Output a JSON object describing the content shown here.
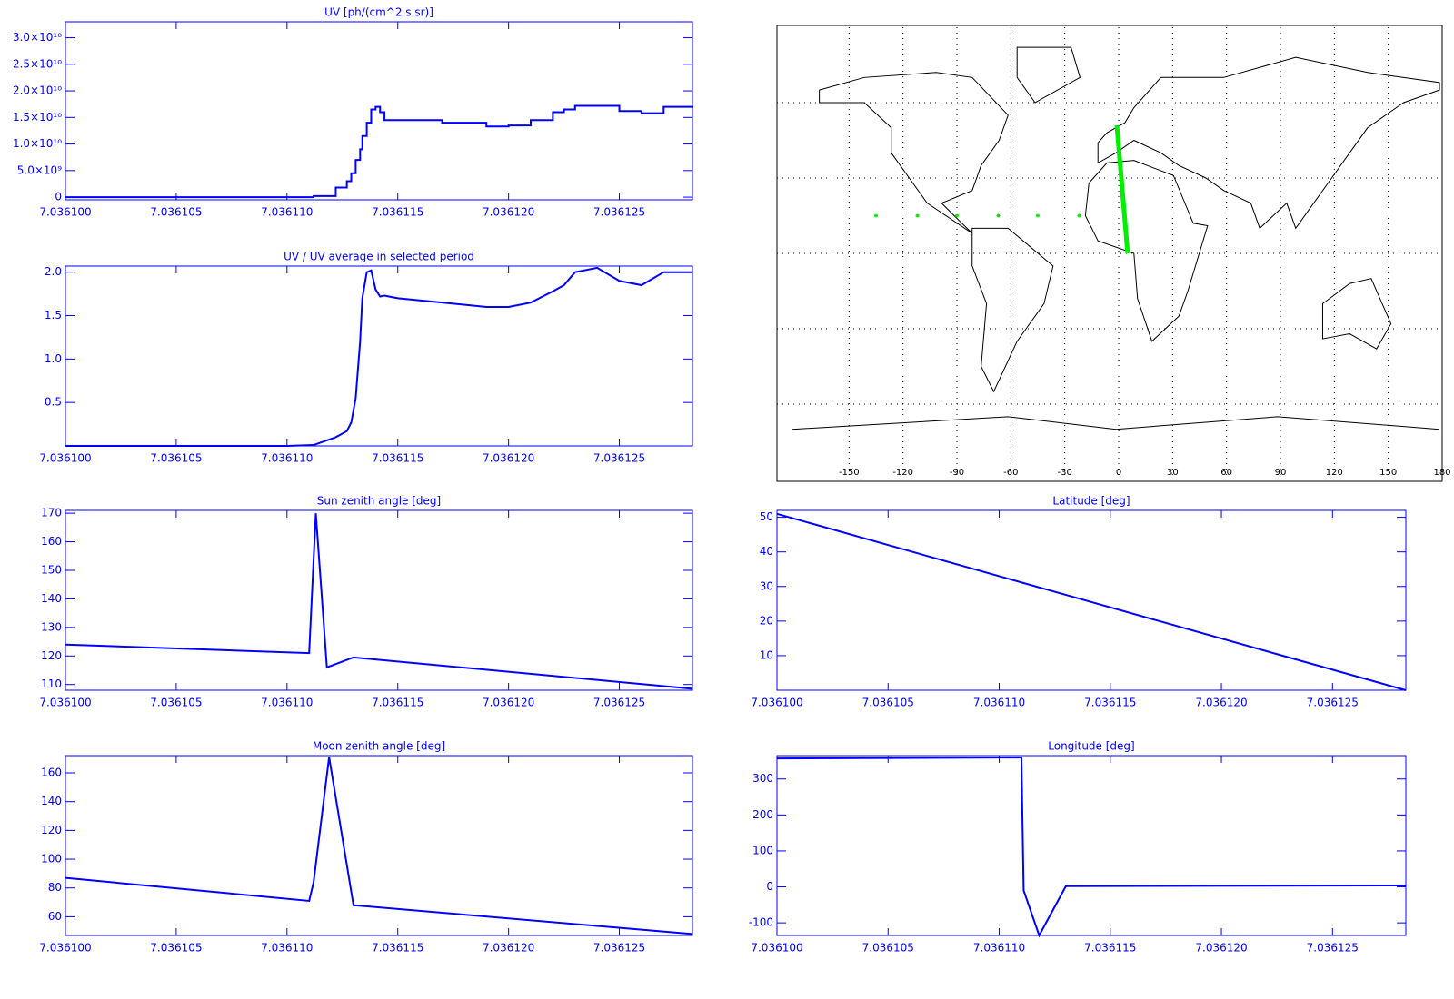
{
  "chart_data": [
    {
      "type": "line",
      "title": "UV [ph/(cm^2 s sr)]",
      "step": true,
      "x": [
        7.0361,
        7.03611,
        7.0361112,
        7.0361122,
        7.0361127,
        7.0361129,
        7.0361131,
        7.0361133,
        7.0361134,
        7.0361136,
        7.0361138,
        7.036114,
        7.0361142,
        7.0361144,
        7.0361146,
        7.036115,
        7.036117,
        7.036119,
        7.03612,
        7.036121,
        7.036122,
        7.0361225,
        7.036123,
        7.036124,
        7.036125,
        7.036126,
        7.036127,
        7.0361283
      ],
      "series": [
        {
          "color": "#0000ff",
          "values": [
            0,
            0,
            200000000.0,
            1800000000.0,
            3000000000.0,
            4500000000.0,
            7000000000.0,
            9000000000.0,
            11500000000.0,
            14000000000.0,
            16500000000.0,
            17000000000.0,
            16000000000.0,
            14500000000.0,
            14500000000.0,
            14500000000.0,
            14000000000.0,
            13300000000.0,
            13500000000.0,
            14500000000.0,
            16000000000.0,
            16500000000.0,
            17200000000.0,
            17200000000.0,
            16200000000.0,
            15800000000.0,
            17000000000.0,
            16800000000.0
          ]
        }
      ],
      "xlim": [
        7.0361,
        7.0361283
      ],
      "xticks": [
        {
          "value": 7.0361,
          "label": "7.036100"
        },
        {
          "value": 7.036105,
          "label": "7.036105"
        },
        {
          "value": 7.03611,
          "label": "7.036110"
        },
        {
          "value": 7.036115,
          "label": "7.036115"
        },
        {
          "value": 7.03612,
          "label": "7.036120"
        },
        {
          "value": 7.036125,
          "label": "7.036125"
        }
      ],
      "ylim": [
        -500000000.0,
        33000000000.0
      ],
      "yticks": [
        0,
        {
          "value": 5000000000.0,
          "label": "5.0×10⁹"
        },
        {
          "value": 10000000000.0,
          "label": "1.0×10¹⁰"
        },
        {
          "value": 15000000000.0,
          "label": "1.5×10¹⁰"
        },
        {
          "value": 20000000000.0,
          "label": "2.0×10¹⁰"
        },
        {
          "value": 25000000000.0,
          "label": "2.5×10¹⁰"
        },
        {
          "value": 30000000000.0,
          "label": "3.0×10¹⁰"
        }
      ]
    },
    {
      "type": "map",
      "xlim": [
        -180,
        180
      ],
      "ylim": [
        -90,
        90
      ],
      "grid": true,
      "xticks": [
        -150,
        -120,
        -90,
        -60,
        -30,
        0,
        30,
        60,
        90,
        120,
        150,
        180
      ],
      "series": [
        {
          "color": "#00ee00",
          "x": [
            -1,
            5
          ],
          "values": [
            51,
            0
          ]
        },
        {
          "color": "#00ee00",
          "marker": "asterisk",
          "x": [
            -135,
            -112,
            -90,
            -67,
            -45,
            -22
          ],
          "values": [
            15,
            15,
            15,
            15,
            15,
            15
          ]
        }
      ]
    },
    {
      "type": "line",
      "title": "UV / UV average in selected period",
      "x": [
        7.0361,
        7.03611,
        7.0361112,
        7.0361122,
        7.0361127,
        7.0361129,
        7.0361131,
        7.0361133,
        7.0361134,
        7.0361136,
        7.0361138,
        7.036114,
        7.0361142,
        7.0361144,
        7.0361146,
        7.036115,
        7.036117,
        7.036119,
        7.03612,
        7.036121,
        7.036122,
        7.0361225,
        7.036123,
        7.036124,
        7.036125,
        7.036126,
        7.036127,
        7.0361283
      ],
      "series": [
        {
          "color": "#0000ff",
          "values": [
            0,
            0,
            0.01,
            0.1,
            0.17,
            0.27,
            0.55,
            1.2,
            1.7,
            2.0,
            2.02,
            1.8,
            1.72,
            1.73,
            1.72,
            1.7,
            1.65,
            1.6,
            1.6,
            1.65,
            1.78,
            1.85,
            2.0,
            2.05,
            1.9,
            1.85,
            2.0,
            2.0
          ]
        }
      ],
      "xlim": [
        7.0361,
        7.0361283
      ],
      "xticks": [
        {
          "value": 7.0361,
          "label": "7.036100"
        },
        {
          "value": 7.036105,
          "label": "7.036105"
        },
        {
          "value": 7.03611,
          "label": "7.036110"
        },
        {
          "value": 7.036115,
          "label": "7.036115"
        },
        {
          "value": 7.03612,
          "label": "7.036120"
        },
        {
          "value": 7.036125,
          "label": "7.036125"
        }
      ],
      "ylim": [
        0,
        2.07
      ],
      "yticks": [
        0.5,
        {
          "value": 1,
          "label": "1.0"
        },
        1.5,
        {
          "value": 2,
          "label": "2.0"
        }
      ]
    },
    {
      "type": "line",
      "title": "Sun zenith angle [deg]",
      "x": [
        7.0361,
        7.036111,
        7.0361113,
        7.0361118,
        7.036113,
        7.0361283
      ],
      "series": [
        {
          "color": "#0000ff",
          "values": [
            124,
            121,
            170,
            116,
            119.5,
            108.5
          ]
        }
      ],
      "xlim": [
        7.0361,
        7.0361283
      ],
      "xticks": [
        {
          "value": 7.0361,
          "label": "7.036100"
        },
        {
          "value": 7.036105,
          "label": "7.036105"
        },
        {
          "value": 7.03611,
          "label": "7.036110"
        },
        {
          "value": 7.036115,
          "label": "7.036115"
        },
        {
          "value": 7.03612,
          "label": "7.036120"
        },
        {
          "value": 7.036125,
          "label": "7.036125"
        }
      ],
      "ylim": [
        108,
        171
      ],
      "yticks": [
        110,
        120,
        130,
        140,
        150,
        160,
        170
      ]
    },
    {
      "type": "line",
      "title": "Latitude [deg]",
      "x": [
        7.0361,
        7.0361283
      ],
      "series": [
        {
          "color": "#0000ff",
          "values": [
            51,
            0
          ]
        }
      ],
      "xlim": [
        7.0361,
        7.0361283
      ],
      "xticks": [
        {
          "value": 7.0361,
          "label": "7.036100"
        },
        {
          "value": 7.036105,
          "label": "7.036105"
        },
        {
          "value": 7.03611,
          "label": "7.036110"
        },
        {
          "value": 7.036115,
          "label": "7.036115"
        },
        {
          "value": 7.03612,
          "label": "7.036120"
        },
        {
          "value": 7.036125,
          "label": "7.036125"
        }
      ],
      "ylim": [
        0,
        52
      ],
      "yticks": [
        10,
        20,
        30,
        40,
        50
      ]
    },
    {
      "type": "line",
      "title": "Moon zenith angle [deg]",
      "x": [
        7.0361,
        7.036111,
        7.0361112,
        7.0361119,
        7.036113,
        7.0361283
      ],
      "series": [
        {
          "color": "#0000ff",
          "values": [
            87,
            71,
            84,
            171,
            68,
            48
          ]
        }
      ],
      "xlim": [
        7.0361,
        7.0361283
      ],
      "xticks": [
        {
          "value": 7.0361,
          "label": "7.036100"
        },
        {
          "value": 7.036105,
          "label": "7.036105"
        },
        {
          "value": 7.03611,
          "label": "7.036110"
        },
        {
          "value": 7.036115,
          "label": "7.036115"
        },
        {
          "value": 7.03612,
          "label": "7.036120"
        },
        {
          "value": 7.036125,
          "label": "7.036125"
        }
      ],
      "ylim": [
        47,
        172
      ],
      "yticks": [
        60,
        80,
        100,
        120,
        140,
        160
      ]
    },
    {
      "type": "line",
      "title": "Longitude [deg]",
      "x": [
        7.0361,
        7.036111,
        7.0361111,
        7.0361118,
        7.036113,
        7.0361283
      ],
      "series": [
        {
          "color": "#0000ff",
          "values": [
            357,
            360,
            -10,
            -135,
            2,
            4
          ]
        }
      ],
      "xlim": [
        7.0361,
        7.0361283
      ],
      "xticks": [
        {
          "value": 7.0361,
          "label": "7.036100"
        },
        {
          "value": 7.036105,
          "label": "7.036105"
        },
        {
          "value": 7.03611,
          "label": "7.036110"
        },
        {
          "value": 7.036115,
          "label": "7.036115"
        },
        {
          "value": 7.03612,
          "label": "7.036120"
        },
        {
          "value": 7.036125,
          "label": "7.036125"
        }
      ],
      "ylim": [
        -135,
        365
      ],
      "yticks": [
        -100,
        0,
        100,
        200,
        300
      ]
    }
  ]
}
